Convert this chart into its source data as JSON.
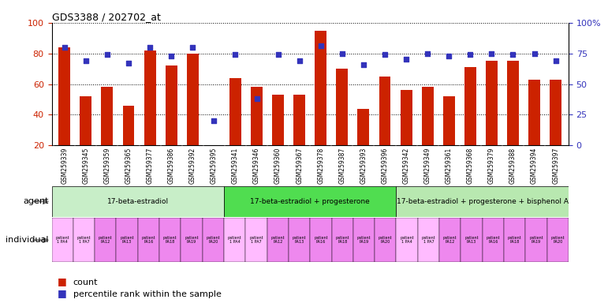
{
  "title": "GDS3388 / 202702_at",
  "gsm_ids": [
    "GSM259339",
    "GSM259345",
    "GSM259359",
    "GSM259365",
    "GSM259377",
    "GSM259386",
    "GSM259392",
    "GSM259395",
    "GSM259341",
    "GSM259346",
    "GSM259360",
    "GSM259367",
    "GSM259378",
    "GSM259387",
    "GSM259393",
    "GSM259396",
    "GSM259342",
    "GSM259349",
    "GSM259361",
    "GSM259368",
    "GSM259379",
    "GSM259388",
    "GSM259394",
    "GSM259397"
  ],
  "bar_heights": [
    84,
    52,
    58,
    46,
    82,
    72,
    80,
    1,
    64,
    58,
    53,
    53,
    95,
    70,
    44,
    65,
    56,
    58,
    52,
    71,
    75,
    75,
    63,
    63
  ],
  "blue_dots": [
    80,
    69,
    74,
    67,
    80,
    73,
    80,
    20,
    74,
    38,
    74,
    69,
    81,
    75,
    66,
    74,
    70,
    75,
    73,
    74,
    75,
    74,
    75,
    69
  ],
  "bar_color": "#cc2200",
  "dot_color": "#3333bb",
  "ylim_left": [
    20,
    100
  ],
  "ylim_right": [
    0,
    100
  ],
  "yticks_left": [
    20,
    40,
    60,
    80,
    100
  ],
  "yticks_right": [
    0,
    25,
    50,
    75,
    100
  ],
  "ytick_labels_right": [
    "0",
    "25",
    "50",
    "75",
    "100%"
  ],
  "groups": [
    {
      "label": "17-beta-estradiol",
      "start": 0,
      "end": 8,
      "color": "#c8eec8"
    },
    {
      "label": "17-beta-estradiol + progesterone",
      "start": 8,
      "end": 16,
      "color": "#50dd50"
    },
    {
      "label": "17-beta-estradiol + progesterone + bisphenol A",
      "start": 16,
      "end": 24,
      "color": "#b8e8b0"
    }
  ],
  "individual_bg_light": "#ffbbff",
  "individual_bg_dark": "#ee88ee",
  "indiv_labels": [
    "patient\n1 PA4",
    "patient\n1 PA7",
    "patient\nPA12",
    "patient\nPA13",
    "patient\nPA16",
    "patient\nPA18",
    "patient\nPA19",
    "patient\nPA20",
    "patient\n1 PA4",
    "patient\n1 PA7",
    "patient\nPA12",
    "patient\nPA13",
    "patient\nPA16",
    "patient\nPA18",
    "patient\nPA19",
    "patient\nPA20",
    "patient\n1 PA4",
    "patient\n1 PA7",
    "patient\nPA12",
    "patient\nPA13",
    "patient\nPA16",
    "patient\nPA18",
    "patient\nPA19",
    "patient\nPA20"
  ],
  "legend_count_color": "#cc2200",
  "legend_pct_color": "#3333bb",
  "legend_count_label": "count",
  "legend_pct_label": "percentile rank within the sample",
  "agent_label": "agent",
  "individual_label": "individual",
  "xtick_bg": "#dddddd",
  "bar_width": 0.55
}
